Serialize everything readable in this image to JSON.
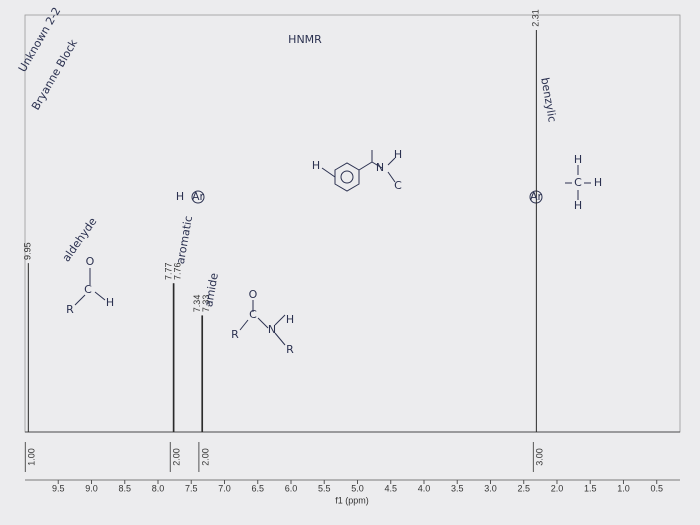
{
  "chart_data": {
    "type": "spectrum",
    "title": "HNMR",
    "x_label": "f1 (ppm)",
    "xlim": [
      10,
      0.15
    ],
    "ylim": [
      0,
      1
    ],
    "xticks": [
      9.5,
      {
        "value": 9,
        "label": "9.0"
      },
      8.5,
      {
        "value": 8,
        "label": "8.0"
      },
      7.5,
      {
        "value": 7,
        "label": "7.0"
      },
      6.5,
      {
        "value": 6,
        "label": "6.0"
      },
      5.5,
      {
        "value": 5,
        "label": "5.0"
      },
      4.5,
      {
        "value": 4,
        "label": "4.0"
      },
      3.5,
      {
        "value": 3,
        "label": "3.0"
      },
      2.5,
      {
        "value": 2,
        "label": "2.0"
      },
      1.5,
      {
        "value": 1,
        "label": "1.0"
      },
      0.5
    ],
    "color": "#2a2a2a",
    "peaks": {
      "x": [
        9.95,
        7.77,
        7.76,
        7.34,
        7.33,
        2.31
      ],
      "values": [
        0.42,
        0.37,
        0.37,
        0.29,
        0.29,
        1.0
      ]
    },
    "integrals": {
      "x": [
        9.95,
        7.77,
        7.34,
        2.31
      ],
      "values": [
        1,
        2,
        2,
        3
      ],
      "value_labels": [
        "1.00",
        "2.00",
        "2.00",
        "3.00"
      ]
    },
    "annotations": [
      "Unknown 2-2",
      "Bryanne Block",
      "aldehyde",
      "aromatic",
      "amide",
      "benzylic",
      "H",
      "Ar",
      "Ar"
    ],
    "structures": [
      [
        "R",
        "C",
        "O",
        "H"
      ],
      [
        "R",
        "C",
        "O",
        "N",
        "H",
        "R"
      ],
      [
        "H",
        "N",
        "H",
        "C"
      ],
      [
        "H",
        "C",
        "H",
        "H"
      ]
    ]
  }
}
